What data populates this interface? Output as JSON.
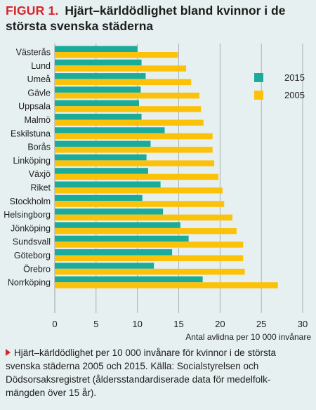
{
  "figure": {
    "label": "FIGUR 1.",
    "title": "Hjärt–kärldödlighet bland kvinnor i de största svenska städerna",
    "caption": "Hjärt–kärldödlighet per 10 000 invånare för kvinnor i de största svenska städerna 2005 och 2015. Källa: Socialstyrelsen och Dödsorsaksregistret (åldersstandardiserade data för medelfolk-mängden över 15 år)."
  },
  "colors": {
    "series_2015": "#1aab9b",
    "series_2005": "#fcc20a",
    "background": "#e6f0f1",
    "grid": "#9aa3a5",
    "accent": "#d8232a"
  },
  "chart_data": {
    "type": "bar",
    "orientation": "horizontal",
    "categories": [
      "Västerås",
      "Lund",
      "Umeå",
      "Gävle",
      "Uppsala",
      "Malmö",
      "Eskilstuna",
      "Borås",
      "Linköping",
      "Växjö",
      "Riket",
      "Stockholm",
      "Helsingborg",
      "Jönköping",
      "Sundsvall",
      "Göteborg",
      "Örebro",
      "Norrköping"
    ],
    "series": [
      {
        "name": "2015",
        "values": [
          10.0,
          10.5,
          11.0,
          10.4,
          10.2,
          10.5,
          13.3,
          11.6,
          11.1,
          11.3,
          12.8,
          10.6,
          13.1,
          15.2,
          16.2,
          14.2,
          12.0,
          17.9
        ]
      },
      {
        "name": "2005",
        "values": [
          14.9,
          15.9,
          16.5,
          17.5,
          17.7,
          18.0,
          19.1,
          19.1,
          19.3,
          19.8,
          20.3,
          20.5,
          21.5,
          22.0,
          22.8,
          22.8,
          23.0,
          27.0
        ]
      }
    ],
    "xlim": [
      0,
      30
    ],
    "xticks": [
      0,
      5,
      10,
      15,
      20,
      25,
      30
    ],
    "xlabel": "Antal avlidna per 10 000 invånare",
    "ylabel": "",
    "grid": "vertical",
    "legend_position": "right"
  }
}
